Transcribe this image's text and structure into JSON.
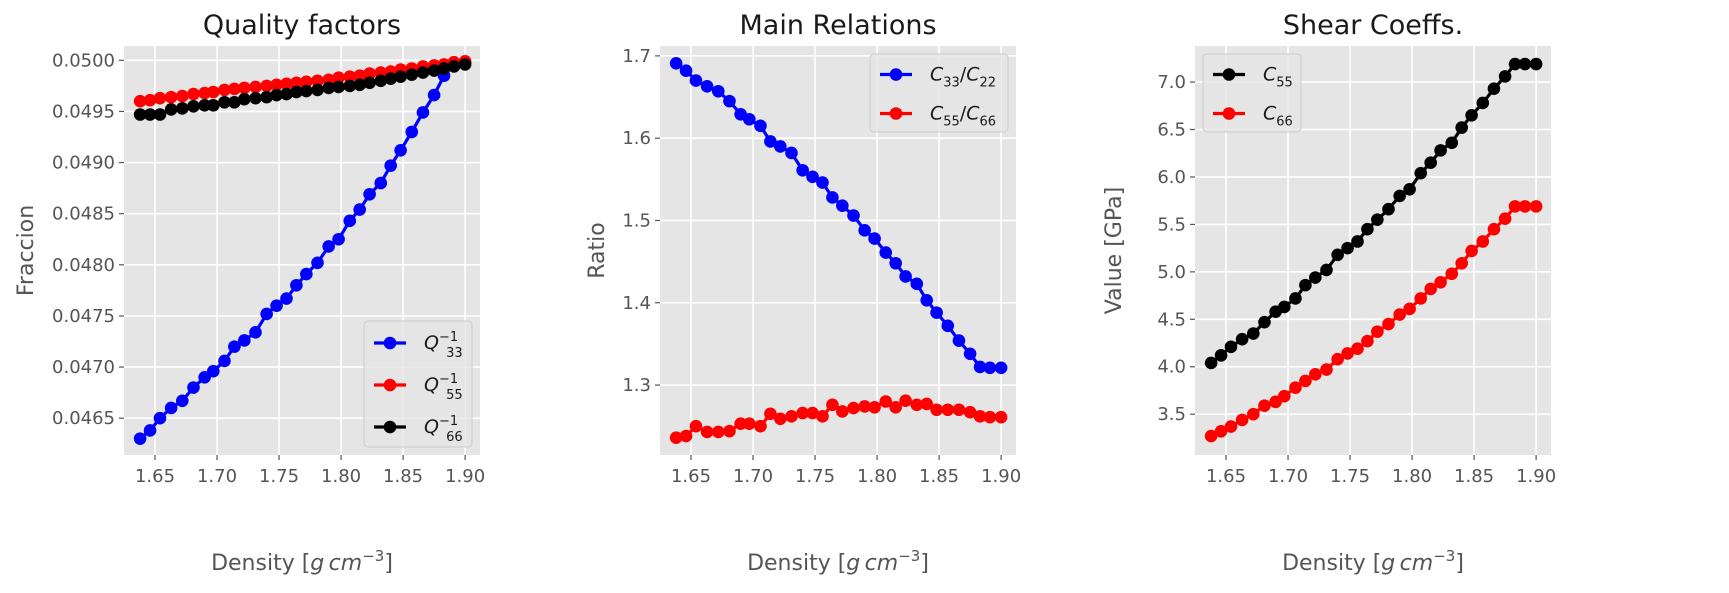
{
  "chart_data": [
    {
      "type": "line",
      "title": "Quality factors",
      "xlabel": "Density [$g\\,cm^{-3}$]",
      "ylabel": "Fraccion",
      "xlim": [
        1.625,
        1.912
      ],
      "ylim": [
        0.04614,
        0.05014
      ],
      "xticks": [
        "1.65",
        "1.70",
        "1.75",
        "1.80",
        "1.85",
        "1.90"
      ],
      "yticks": [
        "0.0465",
        "0.0470",
        "0.0475",
        "0.0480",
        "0.0485",
        "0.0490",
        "0.0495",
        "0.0500"
      ],
      "legend_position": "lower right",
      "grid": true,
      "x": [
        1.638,
        1.646,
        1.654,
        1.663,
        1.672,
        1.681,
        1.69,
        1.697,
        1.706,
        1.714,
        1.722,
        1.731,
        1.74,
        1.748,
        1.756,
        1.764,
        1.772,
        1.781,
        1.79,
        1.798,
        1.807,
        1.815,
        1.823,
        1.832,
        1.84,
        1.848,
        1.857,
        1.866,
        1.875,
        1.883,
        1.891,
        1.9
      ],
      "series": [
        {
          "name": "Q33^-1",
          "color": "#0000ff",
          "values": [
            0.0463,
            0.04638,
            0.0465,
            0.0466,
            0.04667,
            0.0468,
            0.0469,
            0.04696,
            0.04706,
            0.0472,
            0.04726,
            0.04734,
            0.04752,
            0.0476,
            0.04767,
            0.0478,
            0.04791,
            0.04802,
            0.04818,
            0.04825,
            0.04843,
            0.04854,
            0.04869,
            0.0488,
            0.04897,
            0.04912,
            0.0493,
            0.04949,
            0.04966,
            0.04985,
            0.04998,
            0.04998
          ]
        },
        {
          "name": "Q55^-1",
          "color": "#ff0000",
          "values": [
            0.0496,
            0.04961,
            0.04963,
            0.04964,
            0.04965,
            0.04967,
            0.04968,
            0.04969,
            0.04971,
            0.04972,
            0.04973,
            0.04974,
            0.04975,
            0.04976,
            0.04977,
            0.04978,
            0.04979,
            0.0498,
            0.04981,
            0.04983,
            0.04984,
            0.04985,
            0.04987,
            0.04988,
            0.04989,
            0.04991,
            0.04992,
            0.04994,
            0.04995,
            0.04996,
            0.04998,
            0.04999
          ]
        },
        {
          "name": "Q66^-1",
          "color": "#000000",
          "values": [
            0.04947,
            0.04947,
            0.04947,
            0.04952,
            0.04953,
            0.04955,
            0.04956,
            0.04956,
            0.04959,
            0.04959,
            0.04962,
            0.04963,
            0.04964,
            0.04966,
            0.04967,
            0.04969,
            0.0497,
            0.04971,
            0.04973,
            0.04974,
            0.04975,
            0.04976,
            0.04978,
            0.0498,
            0.04982,
            0.04984,
            0.04986,
            0.04988,
            0.0499,
            0.04992,
            0.04994,
            0.04996
          ]
        }
      ]
    },
    {
      "type": "line",
      "title": "Main Relations",
      "xlabel": "Density [$g\\,cm^{-3}$]",
      "ylabel": "Ratio",
      "xlim": [
        1.625,
        1.912
      ],
      "ylim": [
        1.215,
        1.712
      ],
      "xticks": [
        "1.65",
        "1.70",
        "1.75",
        "1.80",
        "1.85",
        "1.90"
      ],
      "yticks": [
        "1.3",
        "1.4",
        "1.5",
        "1.6",
        "1.7"
      ],
      "legend_position": "upper right",
      "grid": true,
      "x": [
        1.638,
        1.646,
        1.654,
        1.663,
        1.672,
        1.681,
        1.69,
        1.697,
        1.706,
        1.714,
        1.722,
        1.731,
        1.74,
        1.748,
        1.756,
        1.764,
        1.772,
        1.781,
        1.79,
        1.798,
        1.807,
        1.815,
        1.823,
        1.832,
        1.84,
        1.848,
        1.857,
        1.866,
        1.875,
        1.883,
        1.891,
        1.9
      ],
      "series": [
        {
          "name": "C33/C22",
          "color": "#0000ff",
          "values": [
            1.691,
            1.682,
            1.67,
            1.663,
            1.657,
            1.645,
            1.629,
            1.623,
            1.615,
            1.596,
            1.59,
            1.582,
            1.561,
            1.553,
            1.546,
            1.528,
            1.518,
            1.506,
            1.488,
            1.478,
            1.461,
            1.448,
            1.432,
            1.423,
            1.403,
            1.388,
            1.372,
            1.354,
            1.338,
            1.322,
            1.321,
            1.321
          ]
        },
        {
          "name": "C55/C66",
          "color": "#ff0000",
          "values": [
            1.236,
            1.238,
            1.25,
            1.243,
            1.243,
            1.244,
            1.253,
            1.253,
            1.25,
            1.265,
            1.259,
            1.262,
            1.266,
            1.266,
            1.262,
            1.276,
            1.268,
            1.272,
            1.274,
            1.273,
            1.28,
            1.273,
            1.281,
            1.276,
            1.277,
            1.27,
            1.27,
            1.27,
            1.267,
            1.262,
            1.261,
            1.261
          ]
        }
      ]
    },
    {
      "type": "line",
      "title": "Shear Coeffs.",
      "xlabel": "Density [$g\\,cm^{-3}$]",
      "ylabel": "Value [GPa]",
      "xlim": [
        1.625,
        1.912
      ],
      "ylim": [
        3.07,
        7.38
      ],
      "xticks": [
        "1.65",
        "1.70",
        "1.75",
        "1.80",
        "1.85",
        "1.90"
      ],
      "yticks": [
        "3.5",
        "4.0",
        "4.5",
        "5.0",
        "5.5",
        "6.0",
        "6.5",
        "7.0"
      ],
      "legend_position": "upper left",
      "grid": true,
      "x": [
        1.638,
        1.646,
        1.654,
        1.663,
        1.672,
        1.681,
        1.69,
        1.697,
        1.706,
        1.714,
        1.722,
        1.731,
        1.74,
        1.748,
        1.756,
        1.764,
        1.772,
        1.781,
        1.79,
        1.798,
        1.807,
        1.815,
        1.823,
        1.832,
        1.84,
        1.848,
        1.857,
        1.866,
        1.875,
        1.883,
        1.891,
        1.9
      ],
      "series": [
        {
          "name": "C55",
          "color": "#000000",
          "values": [
            4.04,
            4.12,
            4.21,
            4.29,
            4.35,
            4.47,
            4.58,
            4.63,
            4.72,
            4.86,
            4.94,
            5.02,
            5.18,
            5.25,
            5.32,
            5.45,
            5.55,
            5.66,
            5.8,
            5.87,
            6.04,
            6.15,
            6.28,
            6.36,
            6.52,
            6.65,
            6.78,
            6.93,
            7.06,
            7.19,
            7.19,
            7.19
          ]
        },
        {
          "name": "C66",
          "color": "#ff0000",
          "values": [
            3.27,
            3.32,
            3.37,
            3.44,
            3.5,
            3.59,
            3.63,
            3.69,
            3.78,
            3.85,
            3.92,
            3.97,
            4.08,
            4.14,
            4.19,
            4.27,
            4.37,
            4.45,
            4.55,
            4.61,
            4.72,
            4.82,
            4.89,
            4.98,
            5.09,
            5.22,
            5.32,
            5.45,
            5.56,
            5.69,
            5.69,
            5.69
          ]
        }
      ]
    }
  ]
}
